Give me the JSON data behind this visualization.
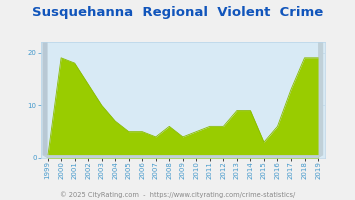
{
  "title": "Susquehanna  Regional  Violent  Crime",
  "years": [
    1999,
    2000,
    2001,
    2002,
    2003,
    2004,
    2005,
    2006,
    2007,
    2008,
    2009,
    2010,
    2011,
    2012,
    2013,
    2014,
    2015,
    2016,
    2017,
    2018,
    2019
  ],
  "values": [
    0,
    19,
    18,
    14,
    10,
    7,
    5,
    5,
    4,
    6,
    4,
    5,
    6,
    6,
    9,
    9,
    3,
    6,
    13,
    19,
    19
  ],
  "fill_color": "#99cc00",
  "line_color": "#88bb00",
  "bg_color": "#d8eaf5",
  "fig_bg_color": "#f0f0f0",
  "grid_color": "#b8d4e8",
  "title_color": "#1155bb",
  "tick_color": "#4499cc",
  "footer_text": "© 2025 CityRating.com  -  https://www.cityrating.com/crime-statistics/",
  "footer_color": "#888888",
  "wall_color_light": "#c8d8e0",
  "wall_color_dark": "#a0b8c8",
  "wall_color_side": "#b0c8d4",
  "ylim": [
    0,
    22
  ],
  "yticks": [
    0,
    10,
    20
  ],
  "title_fontsize": 9.5,
  "tick_fontsize": 5.0,
  "footer_fontsize": 4.8
}
